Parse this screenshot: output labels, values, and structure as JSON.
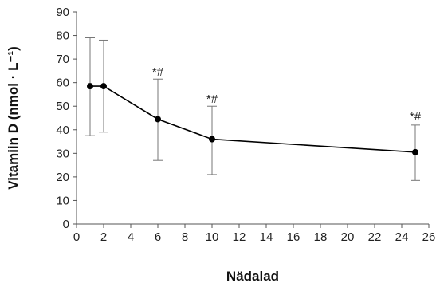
{
  "chart_data": {
    "type": "line",
    "title": "",
    "xlabel": "Nädalad",
    "ylabel": "Vitamiin D (nmol · L⁻¹)",
    "xlim": [
      0,
      26
    ],
    "ylim": [
      0,
      90
    ],
    "xticks": [
      0,
      2,
      4,
      6,
      8,
      10,
      12,
      14,
      16,
      18,
      20,
      22,
      24,
      26
    ],
    "yticks": [
      0,
      10,
      20,
      30,
      40,
      50,
      60,
      70,
      80,
      90
    ],
    "grid": false,
    "legend": "none",
    "series": [
      {
        "x": [
          1,
          2,
          6,
          10,
          25
        ],
        "y": [
          58.5,
          58.5,
          44.5,
          36,
          30.5
        ],
        "err_low": [
          37.5,
          39,
          27,
          21,
          18.5
        ],
        "err_high": [
          79,
          78,
          61.5,
          50,
          42
        ],
        "color": "#000000"
      }
    ],
    "annotations": [
      {
        "x": 6,
        "y": 63,
        "text": "*#"
      },
      {
        "x": 10,
        "y": 51.5,
        "text": "*#"
      },
      {
        "x": 25,
        "y": 44,
        "text": "*#"
      }
    ]
  }
}
